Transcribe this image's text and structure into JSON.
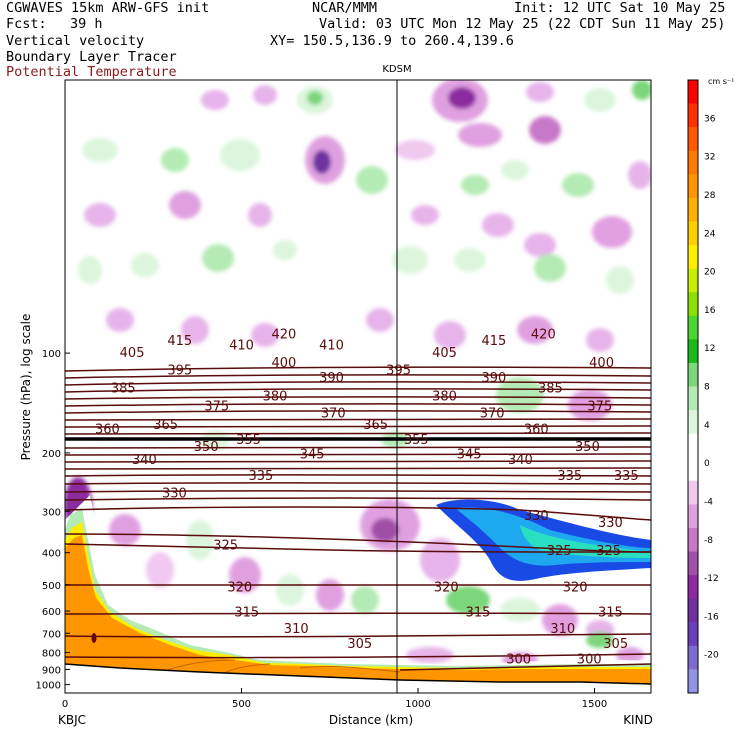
{
  "header": {
    "model": "CGWAVES 15km ARW-GFS init",
    "fcst_label": "Fcst:",
    "fcst_value": "39 h",
    "org": "NCAR/MMM",
    "init": "Init: 12 UTC Sat 10 May 25",
    "valid": "Valid: 03 UTC Mon 12 May 25 (22 CDT Sun 11 May 25)",
    "xy": "XY= 150.5,136.9 to 260.4,139.6",
    "field1": "Vertical velocity",
    "field2": "Boundary Layer Tracer",
    "field3": "Potential Temperature"
  },
  "colors": {
    "theta_contour": "#5a0b0b",
    "tracer_fill": "#ff8c00",
    "terrain_fill": "#ffffff"
  },
  "chart_data": {
    "type": "heatmap",
    "station_marker": "KDSM",
    "xlabel": "Distance (km)",
    "ylabel": "Pressure (hPa), log scale",
    "x_ticks": [
      "0",
      "500",
      "1000",
      "1500"
    ],
    "x_endpoints": [
      "KBJC",
      "KIND"
    ],
    "y_ticks": [
      "100",
      "200",
      "300",
      "400",
      "500",
      "600",
      "700",
      "800",
      "900",
      "1000"
    ],
    "xlim": [
      0,
      1660
    ],
    "ylim": [
      1060,
      15
    ],
    "y_scale": "log",
    "colorbar": {
      "units": "cm s⁻¹",
      "labels": [
        "36",
        "32",
        "28",
        "24",
        "20",
        "16",
        "12",
        "8",
        "4",
        "0",
        "-4",
        "-8",
        "-12",
        "-16",
        "-20"
      ],
      "colors": [
        "#ff0000",
        "#ff3000",
        "#ff5a00",
        "#ff7a00",
        "#ff9500",
        "#ffb000",
        "#ffd000",
        "#ffee00",
        "#c8ee00",
        "#8ee000",
        "#4cd633",
        "#1db81d",
        "#7cd67c",
        "#b4eab4",
        "#dcf5dc",
        "#ffffff",
        "#ffffff",
        "#f0c8f0",
        "#e0a0e0",
        "#c878c8",
        "#a050a8",
        "#8c2ca0",
        "#7030a0",
        "#6a3fb8",
        "#7f6ad0",
        "#9494e6"
      ]
    },
    "tracer_interface": {
      "name": "Boundary Layer Tracer top",
      "x": [
        0,
        30,
        60,
        100,
        150,
        250,
        350,
        450,
        600,
        750,
        900,
        1100,
        1300,
        1500,
        1660
      ],
      "pressure": [
        260,
        240,
        250,
        330,
        520,
        620,
        720,
        760,
        800,
        820,
        830,
        835,
        835,
        820,
        830
      ]
    },
    "theta_contours": {
      "name": "Potential Temperature",
      "labels": [
        {
          "value": "420",
          "x": 620,
          "p": 88
        },
        {
          "value": "420",
          "x": 1355,
          "p": 88
        },
        {
          "value": "415",
          "x": 325,
          "p": 92
        },
        {
          "value": "415",
          "x": 1215,
          "p": 92
        },
        {
          "value": "410",
          "x": 500,
          "p": 95
        },
        {
          "value": "410",
          "x": 755,
          "p": 95
        },
        {
          "value": "405",
          "x": 190,
          "p": 100
        },
        {
          "value": "405",
          "x": 1075,
          "p": 100
        },
        {
          "value": "400",
          "x": 620,
          "p": 107
        },
        {
          "value": "400",
          "x": 1520,
          "p": 107
        },
        {
          "value": "395",
          "x": 325,
          "p": 113
        },
        {
          "value": "395",
          "x": 945,
          "p": 113
        },
        {
          "value": "390",
          "x": 755,
          "p": 119
        },
        {
          "value": "390",
          "x": 1215,
          "p": 119
        },
        {
          "value": "385",
          "x": 165,
          "p": 128
        },
        {
          "value": "385",
          "x": 1375,
          "p": 128
        },
        {
          "value": "380",
          "x": 595,
          "p": 135
        },
        {
          "value": "380",
          "x": 1075,
          "p": 135
        },
        {
          "value": "375",
          "x": 430,
          "p": 145
        },
        {
          "value": "375",
          "x": 1515,
          "p": 145
        },
        {
          "value": "370",
          "x": 760,
          "p": 152
        },
        {
          "value": "370",
          "x": 1210,
          "p": 152
        },
        {
          "value": "365",
          "x": 285,
          "p": 165
        },
        {
          "value": "365",
          "x": 880,
          "p": 165
        },
        {
          "value": "360",
          "x": 120,
          "p": 170
        },
        {
          "value": "360",
          "x": 1335,
          "p": 170
        },
        {
          "value": "355",
          "x": 520,
          "p": 183
        },
        {
          "value": "355",
          "x": 995,
          "p": 183
        },
        {
          "value": "350",
          "x": 400,
          "p": 192
        },
        {
          "value": "350",
          "x": 1480,
          "p": 192
        },
        {
          "value": "345",
          "x": 700,
          "p": 202
        },
        {
          "value": "345",
          "x": 1145,
          "p": 202
        },
        {
          "value": "340",
          "x": 225,
          "p": 210
        },
        {
          "value": "340",
          "x": 1290,
          "p": 210
        },
        {
          "value": "335",
          "x": 555,
          "p": 235
        },
        {
          "value": "335",
          "x": 1430,
          "p": 235
        },
        {
          "value": "335",
          "x": 1590,
          "p": 235
        },
        {
          "value": "330",
          "x": 310,
          "p": 265
        },
        {
          "value": "330",
          "x": 1335,
          "p": 310
        },
        {
          "value": "330",
          "x": 1545,
          "p": 325
        },
        {
          "value": "325",
          "x": 455,
          "p": 380
        },
        {
          "value": "325",
          "x": 1400,
          "p": 395
        },
        {
          "value": "325",
          "x": 1540,
          "p": 395
        },
        {
          "value": "320",
          "x": 495,
          "p": 510
        },
        {
          "value": "320",
          "x": 1080,
          "p": 510
        },
        {
          "value": "320",
          "x": 1445,
          "p": 510
        },
        {
          "value": "315",
          "x": 515,
          "p": 605
        },
        {
          "value": "315",
          "x": 1170,
          "p": 605
        },
        {
          "value": "315",
          "x": 1545,
          "p": 605
        },
        {
          "value": "310",
          "x": 655,
          "p": 680
        },
        {
          "value": "310",
          "x": 1410,
          "p": 680
        },
        {
          "value": "305",
          "x": 835,
          "p": 755
        },
        {
          "value": "305",
          "x": 1560,
          "p": 755
        },
        {
          "value": "300",
          "x": 1285,
          "p": 840
        },
        {
          "value": "300",
          "x": 1485,
          "p": 840
        }
      ]
    }
  }
}
